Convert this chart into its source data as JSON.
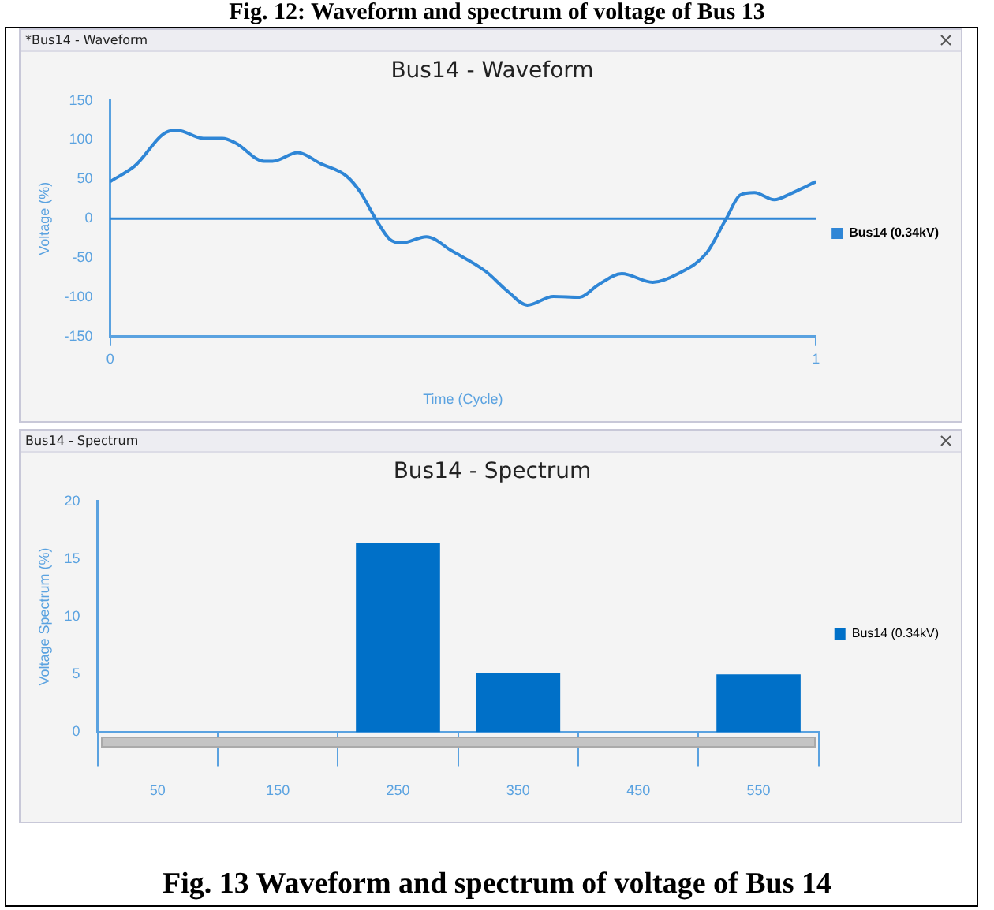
{
  "chart_data": [
    {
      "type": "line",
      "title": "Bus14 - Waveform",
      "xlabel": "Time (Cycle)",
      "ylabel": "Voltage (%)",
      "annotations": [
        "Fig. 12: Waveform and spectrum of voltage of Bus 13",
        "*Bus14 - Waveform"
      ],
      "x": [
        0,
        0.035,
        0.083,
        0.096,
        0.132,
        0.159,
        0.178,
        0.218,
        0.23,
        0.266,
        0.298,
        0.335,
        0.355,
        0.376,
        0.396,
        0.413,
        0.448,
        0.484,
        0.532,
        0.564,
        0.591,
        0.628,
        0.665,
        0.692,
        0.725,
        0.769,
        0.805,
        0.845,
        0.873,
        0.893,
        0.913,
        0.941,
        0.965,
        1
      ],
      "series": [
        {
          "name": "Bus14 (0.34kV)",
          "color": "#2f86d6",
          "values": [
            47,
            67,
            111,
            112,
            102,
            102,
            96,
            73,
            73,
            84,
            70,
            54,
            33,
            0,
            -26,
            -31,
            -23,
            -41,
            -67,
            -93,
            -110,
            -99,
            -100,
            -84,
            -70,
            -81,
            -70,
            -44,
            0,
            30,
            33,
            24,
            32,
            47
          ]
        }
      ],
      "xlim": [
        0,
        1
      ],
      "xticks": [
        0,
        1
      ],
      "ylim": [
        -150,
        150
      ],
      "yticks": [
        -150,
        -100,
        -50,
        0,
        50,
        100,
        150
      ],
      "ref_lines": [
        {
          "axis": "y",
          "value": 0,
          "color": "#2f86d6"
        }
      ],
      "grid": false,
      "legend": "right",
      "marker": "none"
    },
    {
      "type": "bar",
      "title": "Bus14 - Spectrum",
      "ylabel": "Voltage Spectrum (%)",
      "annotations": [
        "Bus14 - Spectrum",
        "Fig. 13 Waveform and spectrum of voltage of Bus 14"
      ],
      "categories": [
        "50",
        "150",
        "250",
        "350",
        "450",
        "550"
      ],
      "series": [
        {
          "name": "Bus14 (0.34kV)",
          "color": "#0070c8",
          "values": [
            0,
            0,
            16.4,
            5.1,
            0,
            5.0
          ]
        }
      ],
      "ylim": [
        0,
        20
      ],
      "yticks": [
        0,
        5,
        10,
        15,
        20
      ],
      "grid": false,
      "legend": "right"
    }
  ]
}
